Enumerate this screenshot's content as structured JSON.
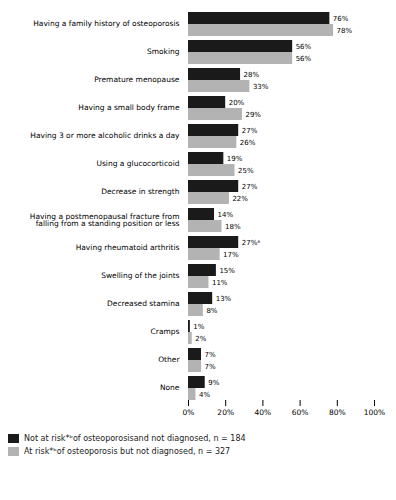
{
  "chart_data": {
    "type": "bar",
    "orientation": "horizontal",
    "categories": [
      "Having a family history of osteoporosis",
      "Smoking",
      "Premature menopause",
      "Having a small body frame",
      "Having 3 or more alcoholic drinks a day",
      "Using a glucocorticoid",
      "Decrease in strength",
      "Having a postmenopausal fracture from\nfalling from a standing position or less",
      "Having rheumatoid arthritis",
      "Swelling of the joints",
      "Decreased stamina",
      "Cramps",
      "Other",
      "None"
    ],
    "series": [
      {
        "name": "Not at risk*ᵇof osteoporosisand not diagnosed, n = 184",
        "color": "#1a1a1a",
        "values": [
          76,
          56,
          28,
          20,
          27,
          19,
          27,
          14,
          27,
          15,
          13,
          1,
          7,
          9
        ],
        "value_labels": [
          "76%",
          "56%",
          "28%",
          "20%",
          "27%",
          "19%",
          "27%",
          "14%",
          "27%ᵃ",
          "15%",
          "13%",
          "1%",
          "7%",
          "9%"
        ]
      },
      {
        "name": "At risk*ᵇof osteoporosis but not diagnosed, n = 327",
        "color": "#b3b3b3",
        "values": [
          78,
          56,
          33,
          29,
          26,
          25,
          22,
          18,
          17,
          11,
          8,
          2,
          7,
          4
        ],
        "value_labels": [
          "78%",
          "56%",
          "33%",
          "29%",
          "26%",
          "25%",
          "22%",
          "18%",
          "17%",
          "11%",
          "8%",
          "2%",
          "7%",
          "4%"
        ]
      }
    ],
    "xlim": [
      0,
      100
    ],
    "xticks": [
      {
        "value": 0,
        "label": "0%"
      },
      {
        "value": 20,
        "label": "20%"
      },
      {
        "value": 40,
        "label": "40%"
      },
      {
        "value": 60,
        "label": "60%"
      },
      {
        "value": 80,
        "label": "80%"
      },
      {
        "value": 100,
        "label": "100%"
      }
    ],
    "data_labels": true,
    "grid": false,
    "legend": "lower left"
  }
}
